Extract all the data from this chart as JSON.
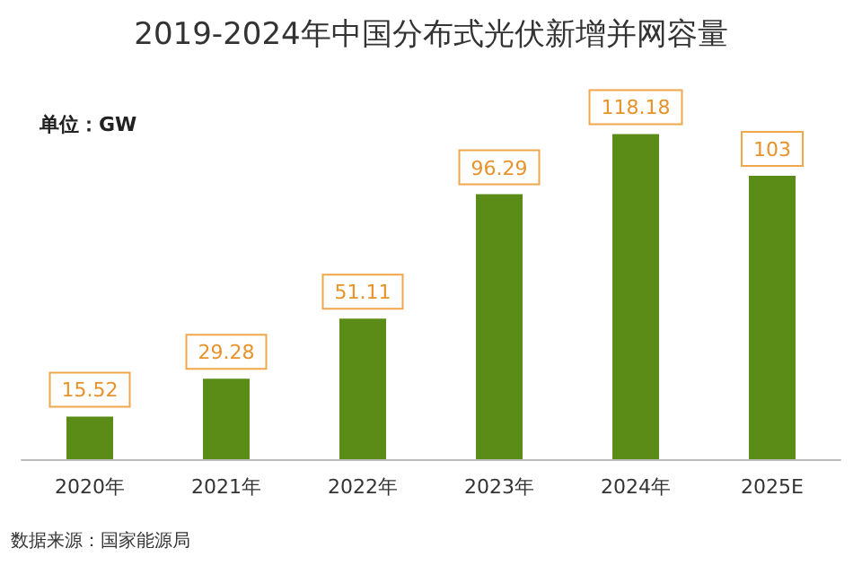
{
  "chart_data": {
    "type": "bar",
    "title": "2019-2024年中国分布式光伏新增并网容量",
    "categories": [
      "2020年",
      "2021年",
      "2022年",
      "2023年",
      "2024年",
      "2025E"
    ],
    "values": [
      15.52,
      29.28,
      51.11,
      96.29,
      118.18,
      103
    ],
    "color": "#5b8c17",
    "data_labels": true,
    "annotations": [
      "单位：GW",
      "数据来源：国家能源局"
    ]
  }
}
